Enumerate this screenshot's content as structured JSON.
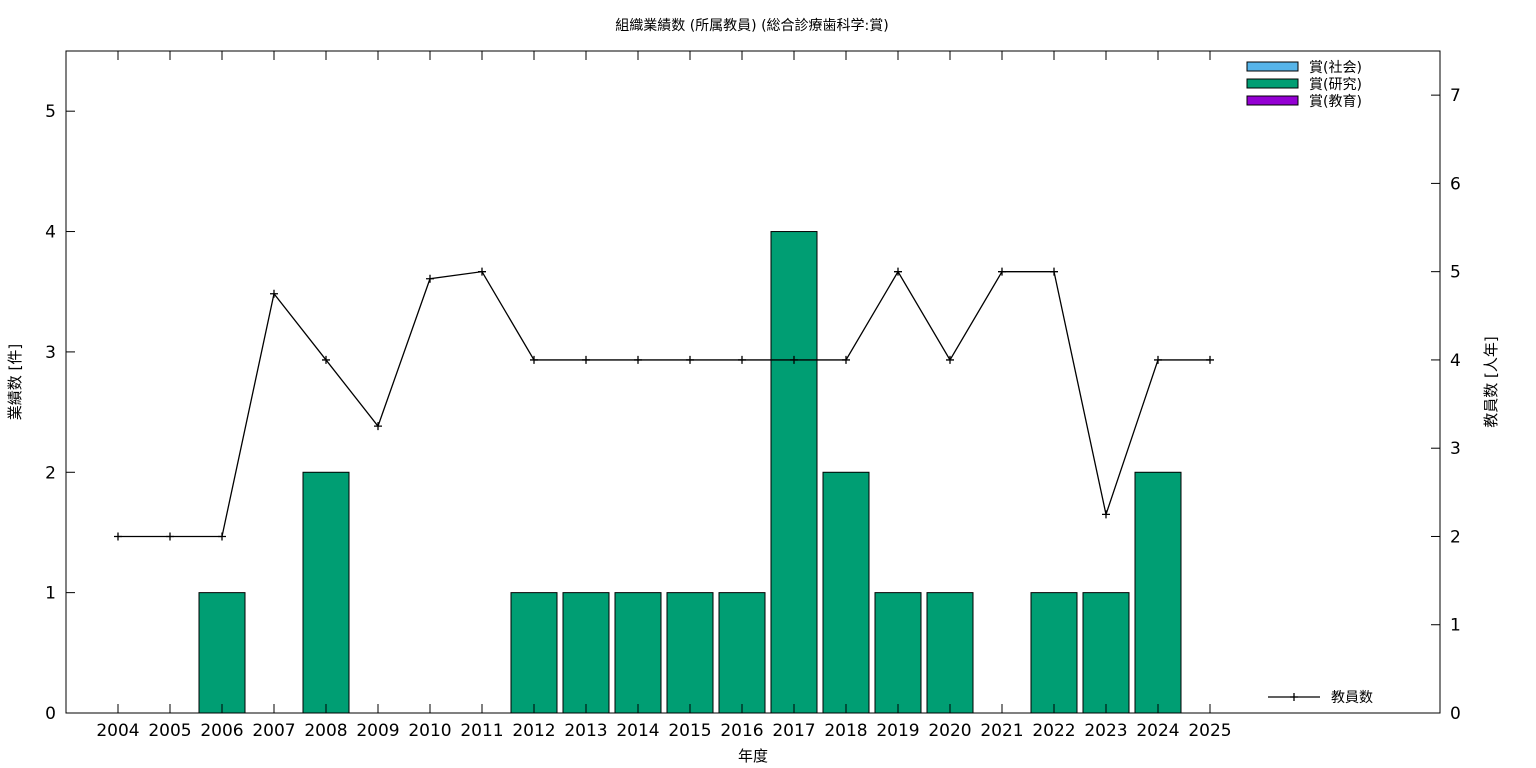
{
  "chart_data": {
    "type": "bar",
    "title": "組織業績数 (所属教員) (総合診療歯科学:賞)",
    "xlabel": "年度",
    "ylabel": "業績数 [件]",
    "y2label": "教員数 [人年]",
    "categories": [
      "2004",
      "2005",
      "2006",
      "2007",
      "2008",
      "2009",
      "2010",
      "2011",
      "2012",
      "2013",
      "2014",
      "2015",
      "2016",
      "2017",
      "2018",
      "2019",
      "2020",
      "2021",
      "2022",
      "2023",
      "2024",
      "2025"
    ],
    "ylim": [
      0,
      5.5
    ],
    "y2lim": [
      0,
      7.5
    ],
    "yticks": [
      0,
      1,
      2,
      3,
      4,
      5
    ],
    "y2ticks": [
      0,
      1,
      2,
      3,
      4,
      5,
      6,
      7
    ],
    "grid": false,
    "legend_position": "top-right",
    "series": [
      {
        "name": "賞(社会)",
        "color": "#56b4e9",
        "axis": "left",
        "values": [
          0,
          0,
          0,
          0,
          0,
          0,
          0,
          0,
          0,
          0,
          0,
          0,
          0,
          0,
          0,
          0,
          0,
          0,
          0,
          0,
          0,
          0
        ]
      },
      {
        "name": "賞(研究)",
        "color": "#009e73",
        "axis": "left",
        "values": [
          0,
          0,
          1,
          0,
          2,
          0,
          0,
          0,
          1,
          1,
          1,
          1,
          1,
          4,
          2,
          1,
          1,
          0,
          1,
          1,
          2,
          0
        ]
      },
      {
        "name": "賞(教育)",
        "color": "#9400d3",
        "axis": "left",
        "values": [
          0,
          0,
          0,
          0,
          0,
          0,
          0,
          0,
          0,
          0,
          0,
          0,
          0,
          0,
          0,
          0,
          0,
          0,
          0,
          0,
          0,
          0
        ]
      }
    ],
    "line_series": {
      "name": "教員数",
      "color": "#000000",
      "axis": "right",
      "marker": "plus",
      "values": [
        2,
        2,
        2,
        4.75,
        4,
        3.25,
        4.92,
        5,
        4,
        4,
        4,
        4,
        4,
        4,
        4,
        5,
        4,
        5,
        5,
        2.25,
        4,
        4
      ]
    }
  }
}
